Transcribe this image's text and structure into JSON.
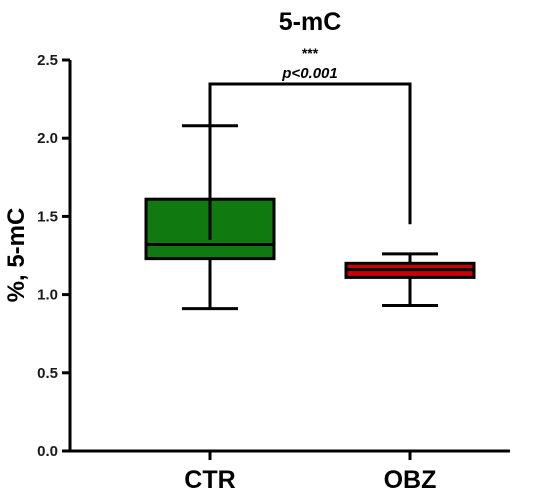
{
  "chart_data": {
    "type": "box",
    "title": "5-mC",
    "ylabel": "%, 5-mC",
    "xlabel": "",
    "ylim": [
      0,
      2.5
    ],
    "yticks": [
      "0.0",
      "0.5",
      "1.0",
      "1.5",
      "2.0",
      "2.5"
    ],
    "categories": [
      "CTR",
      "OBZ"
    ],
    "boxes": [
      {
        "name": "CTR",
        "min": 0.91,
        "q1": 1.23,
        "median": 1.32,
        "q3": 1.61,
        "max": 2.08,
        "color": "#107a10"
      },
      {
        "name": "OBZ",
        "min": 0.93,
        "q1": 1.11,
        "median": 1.16,
        "q3": 1.2,
        "max": 1.26,
        "color": "#cc0000"
      }
    ],
    "annotation": {
      "stars": "***",
      "text": "p<0.001",
      "left_end": 1.35,
      "right_end": 1.45
    }
  }
}
